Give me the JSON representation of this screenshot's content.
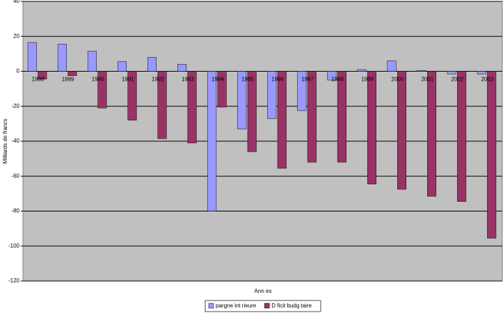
{
  "chart_data": {
    "type": "bar",
    "y_label": "Milliards de francs",
    "x_label": "Ann es",
    "categories": [
      "1988",
      "1989",
      "1990",
      "1991",
      "1992",
      "1993",
      "1994",
      "1995",
      "1996",
      "1997",
      "1998",
      "1999",
      "2000",
      "2001",
      "2002",
      "2003"
    ],
    "series": [
      {
        "name": "pargne int rieure",
        "color": "#9999ff",
        "values": [
          16.5,
          15.5,
          11.5,
          5.5,
          8,
          4,
          -80,
          -33,
          -27,
          -22.5,
          -5,
          1,
          6,
          0.5,
          -1.5,
          -1.5
        ]
      },
      {
        "name": "D ficit budg taire",
        "color": "#993366",
        "values": [
          -4.5,
          -2.5,
          -21,
          -28,
          -38.5,
          -41,
          -20.5,
          -46,
          -55.5,
          -52,
          -52,
          -64.5,
          -67.5,
          -71.5,
          -74.5,
          -95.5
        ]
      }
    ],
    "ylim": [
      -120,
      40
    ],
    "yticks": [
      -120,
      -100,
      -80,
      -60,
      -40,
      -20,
      0,
      20,
      40
    ],
    "grid": true,
    "legend": "bottom",
    "background": "#c0c0c0"
  }
}
